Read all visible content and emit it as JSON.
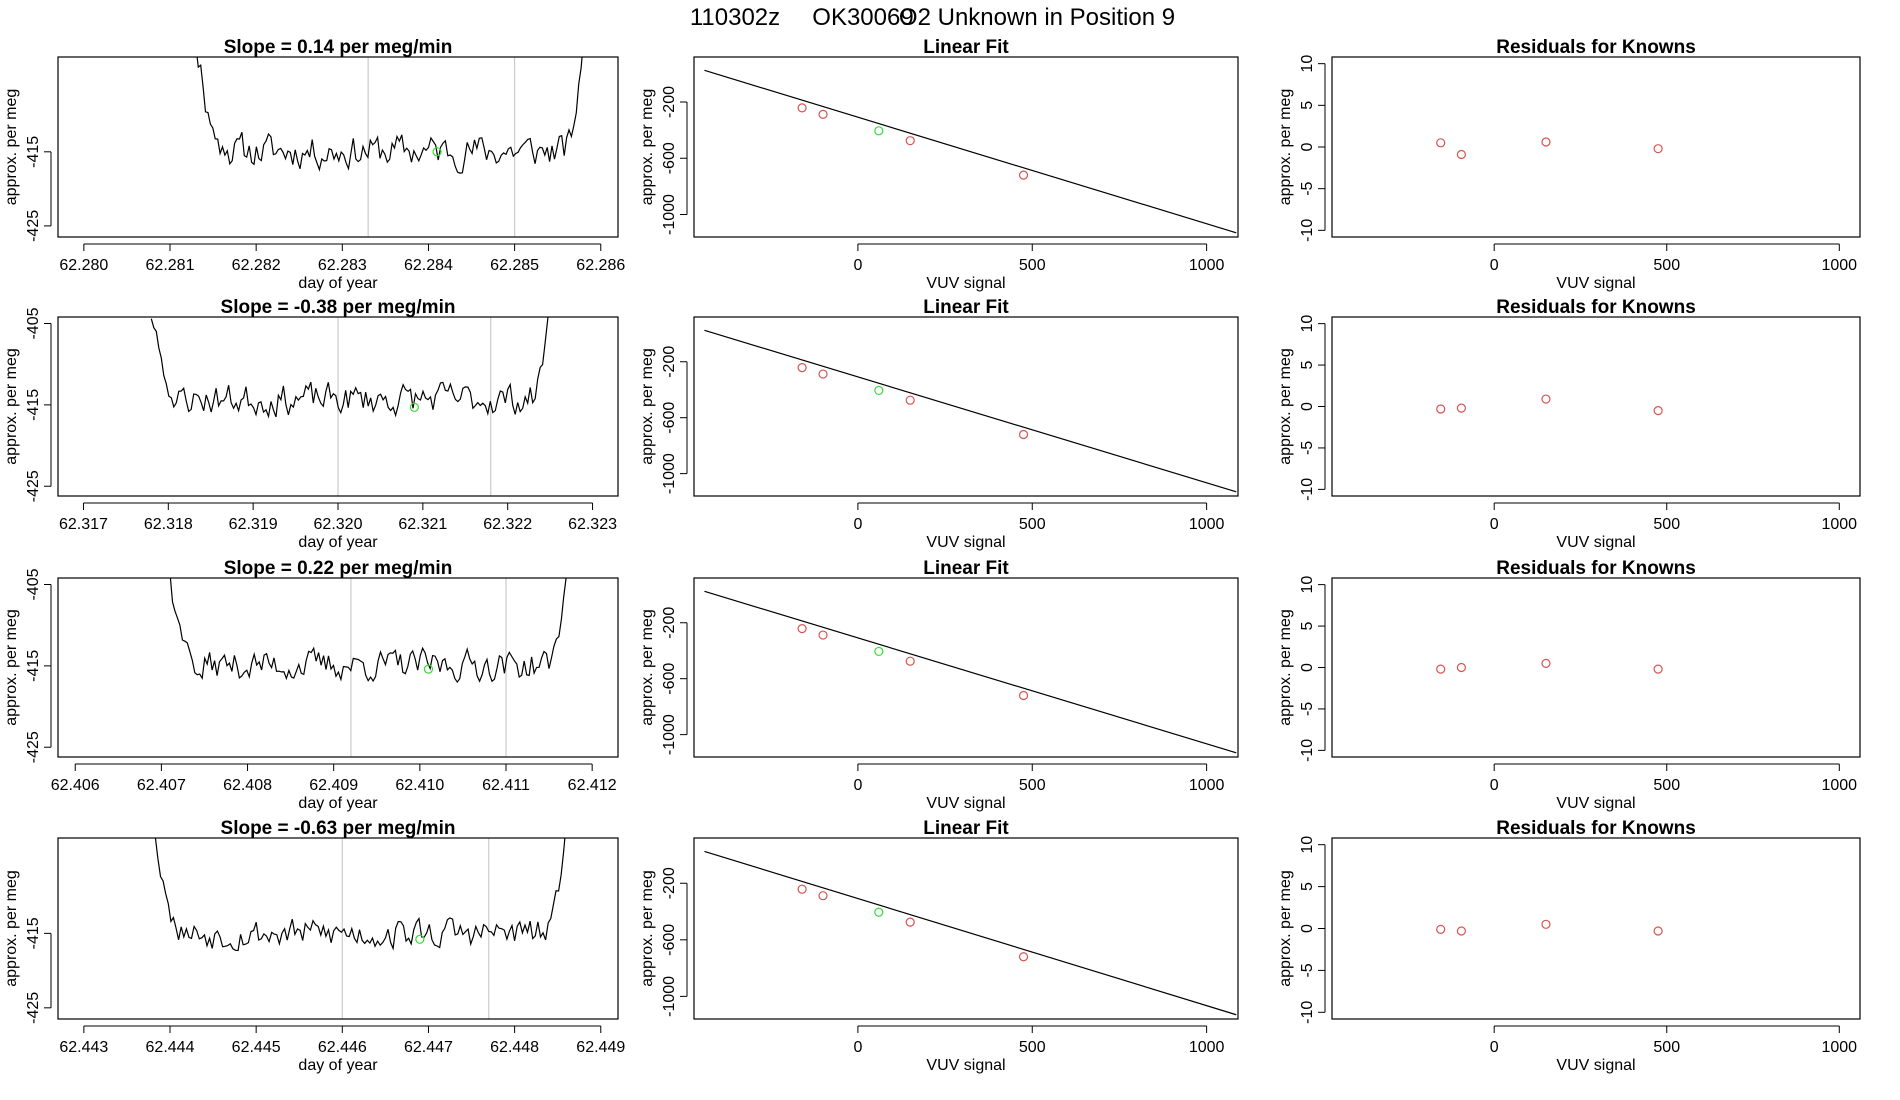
{
  "figure_title": {
    "date_code": "110302z",
    "sample_id": "OK30069",
    "description": "O2 Unknown in Position  9"
  },
  "colors": {
    "axis": "#000000",
    "series_line": "#000000",
    "fit_line": "#000000",
    "known_points": "#d9534f",
    "unknown_point": "#33dd33",
    "reference_lines": "#cccccc"
  },
  "chart_data": [
    {
      "type": "line",
      "row": 0,
      "col": 0,
      "title": "Slope =  0.14  per meg/min",
      "xlabel": "day of year",
      "ylabel": "approx. per meg",
      "xlim": [
        62.2797,
        62.2862
      ],
      "ylim": [
        -426.5,
        -402.2
      ],
      "xticks": [
        62.28,
        62.281,
        62.282,
        62.283,
        62.284,
        62.285,
        62.286
      ],
      "xtick_labels": [
        "62.280",
        "62.281",
        "62.282",
        "62.283",
        "62.284",
        "62.285",
        "62.286"
      ],
      "yticks": [
        -415,
        -425
      ],
      "ytick_labels": [
        "-415",
        "-425"
      ],
      "trace": {
        "x_start": 62.2813,
        "x_end": 62.2858,
        "baseline": -414.9,
        "noise": 2.2,
        "seed": 11,
        "start_level": -400,
        "end_level": -400
      },
      "reference_lines": [
        62.2833,
        62.285
      ],
      "unknown_point": {
        "x": 62.2841,
        "y": -415
      }
    },
    {
      "type": "scatter",
      "row": 0,
      "col": 1,
      "title": "Linear Fit",
      "xlabel": "VUV signal",
      "ylabel": "approx. per meg",
      "xlim": [
        -470,
        1090
      ],
      "ylim": [
        -1160,
        120
      ],
      "xticks": [
        0,
        500,
        1000
      ],
      "xtick_labels": [
        "0",
        "500",
        "1000"
      ],
      "yticks": [
        -200,
        -600,
        -1000
      ],
      "ytick_labels": [
        "-200",
        "-600",
        "-1000"
      ],
      "fit_line": {
        "x": [
          -440,
          1085
        ],
        "y": [
          25,
          -1130
        ]
      },
      "knowns": {
        "x": [
          -160,
          -100,
          150,
          475
        ],
        "y": [
          -242,
          -288,
          -475,
          -720
        ]
      },
      "unknown": {
        "x": 60,
        "y": -405
      }
    },
    {
      "type": "scatter",
      "row": 0,
      "col": 2,
      "title": "Residuals for Knowns",
      "xlabel": "VUV signal",
      "ylabel": "approx. per meg",
      "xlim": [
        -470,
        1060
      ],
      "ylim": [
        -10.8,
        10.8
      ],
      "xticks": [
        0,
        500,
        1000
      ],
      "xtick_labels": [
        "0",
        "500",
        "1000"
      ],
      "yticks": [
        10,
        5,
        0,
        -5,
        -10
      ],
      "ytick_labels": [
        "10",
        "5",
        "0",
        "-5",
        "-10"
      ],
      "residuals": {
        "x": [
          -155,
          -95,
          150,
          475
        ],
        "y": [
          0.5,
          -0.9,
          0.6,
          -0.2
        ]
      }
    },
    {
      "type": "line",
      "row": 1,
      "col": 0,
      "title": "Slope =  -0.38  per meg/min",
      "xlabel": "day of year",
      "ylabel": "approx. per meg",
      "xlim": [
        62.3167,
        62.3233
      ],
      "ylim": [
        -426.2,
        -404.2
      ],
      "xticks": [
        62.317,
        62.318,
        62.319,
        62.32,
        62.321,
        62.322,
        62.323
      ],
      "xtick_labels": [
        "62.317",
        "62.318",
        "62.319",
        "62.320",
        "62.321",
        "62.322",
        "62.323"
      ],
      "yticks": [
        -405,
        -415,
        -425
      ],
      "ytick_labels": [
        "-405",
        "-415",
        "-425"
      ],
      "trace": {
        "x_start": 62.3178,
        "x_end": 62.3225,
        "baseline": -414.3,
        "noise": 1.9,
        "seed": 23,
        "start_level": -404,
        "end_level": -402
      },
      "reference_lines": [
        62.32,
        62.3218
      ],
      "unknown_point": {
        "x": 62.3209,
        "y": -415.3
      }
    },
    {
      "type": "scatter",
      "row": 1,
      "col": 1,
      "title": "Linear Fit",
      "xlabel": "VUV signal",
      "ylabel": "approx. per meg",
      "xlim": [
        -470,
        1090
      ],
      "ylim": [
        -1160,
        120
      ],
      "xticks": [
        0,
        500,
        1000
      ],
      "xtick_labels": [
        "0",
        "500",
        "1000"
      ],
      "yticks": [
        -200,
        -600,
        -1000
      ],
      "ytick_labels": [
        "-200",
        "-600",
        "-1000"
      ],
      "fit_line": {
        "x": [
          -440,
          1085
        ],
        "y": [
          25,
          -1130
        ]
      },
      "knowns": {
        "x": [
          -160,
          -100,
          150,
          475
        ],
        "y": [
          -242,
          -288,
          -475,
          -720
        ]
      },
      "unknown": {
        "x": 60,
        "y": -405
      }
    },
    {
      "type": "scatter",
      "row": 1,
      "col": 2,
      "title": "Residuals for Knowns",
      "xlabel": "VUV signal",
      "ylabel": "approx. per meg",
      "xlim": [
        -470,
        1060
      ],
      "ylim": [
        -10.8,
        10.8
      ],
      "xticks": [
        0,
        500,
        1000
      ],
      "xtick_labels": [
        "0",
        "500",
        "1000"
      ],
      "yticks": [
        10,
        5,
        0,
        -5,
        -10
      ],
      "ytick_labels": [
        "10",
        "5",
        "0",
        "-5",
        "-10"
      ],
      "residuals": {
        "x": [
          -155,
          -95,
          150,
          475
        ],
        "y": [
          -0.3,
          -0.2,
          0.9,
          -0.5
        ]
      }
    },
    {
      "type": "line",
      "row": 2,
      "col": 0,
      "title": "Slope =  0.22  per meg/min",
      "xlabel": "day of year",
      "ylabel": "approx. per meg",
      "xlim": [
        62.4058,
        62.4123
      ],
      "ylim": [
        -426.2,
        -404.2
      ],
      "xticks": [
        62.406,
        62.407,
        62.408,
        62.409,
        62.41,
        62.411,
        62.412
      ],
      "xtick_labels": [
        "62.406",
        "62.407",
        "62.408",
        "62.409",
        "62.410",
        "62.411",
        "62.412"
      ],
      "yticks": [
        -405,
        -415,
        -425
      ],
      "ytick_labels": [
        "-405",
        "-415",
        "-425"
      ],
      "trace": {
        "x_start": 62.4071,
        "x_end": 62.4117,
        "baseline": -414.9,
        "noise": 1.8,
        "seed": 37,
        "start_level": -404,
        "end_level": -404
      },
      "reference_lines": [
        62.4092,
        62.411
      ],
      "unknown_point": {
        "x": 62.4101,
        "y": -415.4
      }
    },
    {
      "type": "scatter",
      "row": 2,
      "col": 1,
      "title": "Linear Fit",
      "xlabel": "VUV signal",
      "ylabel": "approx. per meg",
      "xlim": [
        -470,
        1090
      ],
      "ylim": [
        -1160,
        120
      ],
      "xticks": [
        0,
        500,
        1000
      ],
      "xtick_labels": [
        "0",
        "500",
        "1000"
      ],
      "yticks": [
        -200,
        -600,
        -1000
      ],
      "ytick_labels": [
        "-200",
        "-600",
        "-1000"
      ],
      "fit_line": {
        "x": [
          -440,
          1085
        ],
        "y": [
          25,
          -1130
        ]
      },
      "knowns": {
        "x": [
          -160,
          -100,
          150,
          475
        ],
        "y": [
          -242,
          -288,
          -475,
          -720
        ]
      },
      "unknown": {
        "x": 60,
        "y": -405
      }
    },
    {
      "type": "scatter",
      "row": 2,
      "col": 2,
      "title": "Residuals for Knowns",
      "xlabel": "VUV signal",
      "ylabel": "approx. per meg",
      "xlim": [
        -470,
        1060
      ],
      "ylim": [
        -10.8,
        10.8
      ],
      "xticks": [
        0,
        500,
        1000
      ],
      "xtick_labels": [
        "0",
        "500",
        "1000"
      ],
      "yticks": [
        10,
        5,
        0,
        -5,
        -10
      ],
      "ytick_labels": [
        "10",
        "5",
        "0",
        "-5",
        "-10"
      ],
      "residuals": {
        "x": [
          -155,
          -95,
          150,
          475
        ],
        "y": [
          -0.2,
          0.0,
          0.5,
          -0.2
        ]
      }
    },
    {
      "type": "line",
      "row": 3,
      "col": 0,
      "title": "Slope =  -0.63  per meg/min",
      "xlabel": "day of year",
      "ylabel": "approx. per meg",
      "xlim": [
        62.4427,
        62.4492
      ],
      "ylim": [
        -426.5,
        -402.2
      ],
      "xticks": [
        62.443,
        62.444,
        62.445,
        62.446,
        62.447,
        62.448,
        62.449
      ],
      "xtick_labels": [
        "62.443",
        "62.444",
        "62.445",
        "62.446",
        "62.447",
        "62.448",
        "62.449"
      ],
      "yticks": [
        -415,
        -425
      ],
      "ytick_labels": [
        "-415",
        "-425"
      ],
      "trace": {
        "x_start": 62.4438,
        "x_end": 62.4486,
        "baseline": -415.0,
        "noise": 2.0,
        "seed": 53,
        "start_level": -400,
        "end_level": -400
      },
      "reference_lines": [
        62.446,
        62.4477
      ],
      "unknown_point": {
        "x": 62.4469,
        "y": -415.8
      }
    },
    {
      "type": "scatter",
      "row": 3,
      "col": 1,
      "title": "Linear Fit",
      "xlabel": "VUV signal",
      "ylabel": "approx. per meg",
      "xlim": [
        -470,
        1090
      ],
      "ylim": [
        -1160,
        120
      ],
      "xticks": [
        0,
        500,
        1000
      ],
      "xtick_labels": [
        "0",
        "500",
        "1000"
      ],
      "yticks": [
        -200,
        -600,
        -1000
      ],
      "ytick_labels": [
        "-200",
        "-600",
        "-1000"
      ],
      "fit_line": {
        "x": [
          -440,
          1085
        ],
        "y": [
          25,
          -1130
        ]
      },
      "knowns": {
        "x": [
          -160,
          -100,
          150,
          475
        ],
        "y": [
          -242,
          -288,
          -475,
          -720
        ]
      },
      "unknown": {
        "x": 60,
        "y": -405
      }
    },
    {
      "type": "scatter",
      "row": 3,
      "col": 2,
      "title": "Residuals for Knowns",
      "xlabel": "VUV signal",
      "ylabel": "approx. per meg",
      "xlim": [
        -470,
        1060
      ],
      "ylim": [
        -10.8,
        10.8
      ],
      "xticks": [
        0,
        500,
        1000
      ],
      "xtick_labels": [
        "0",
        "500",
        "1000"
      ],
      "yticks": [
        10,
        5,
        0,
        -5,
        -10
      ],
      "ytick_labels": [
        "10",
        "5",
        "0",
        "-5",
        "-10"
      ],
      "residuals": {
        "x": [
          -155,
          -95,
          150,
          475
        ],
        "y": [
          -0.1,
          -0.3,
          0.5,
          -0.3
        ]
      }
    }
  ]
}
